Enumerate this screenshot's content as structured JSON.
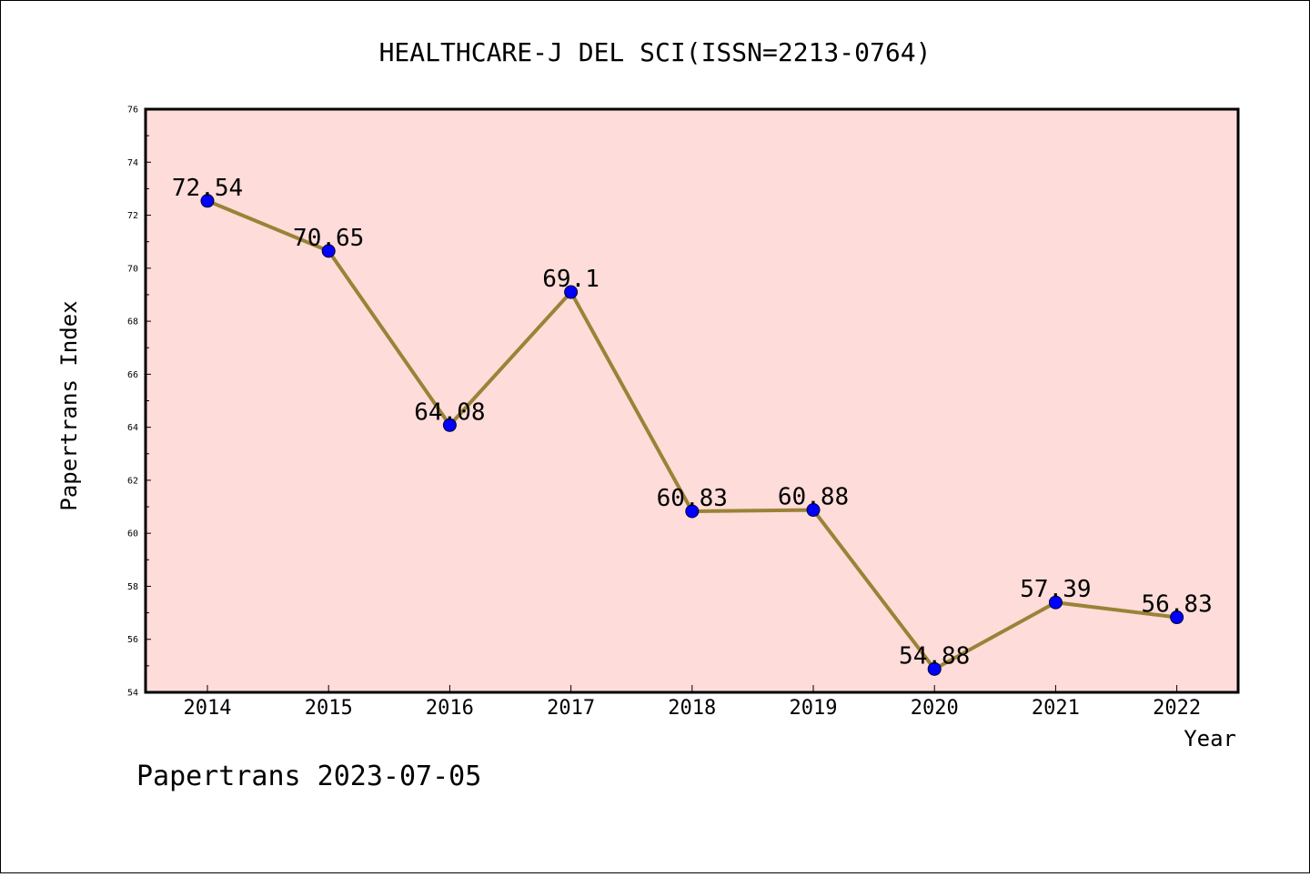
{
  "chart_data": {
    "type": "line",
    "title": "HEALTHCARE-J DEL SCI(ISSN=2213-0764)",
    "xlabel": "Year",
    "ylabel": "Papertrans Index",
    "categories": [
      "2014",
      "2015",
      "2016",
      "2017",
      "2018",
      "2019",
      "2020",
      "2021",
      "2022"
    ],
    "values": [
      72.54,
      70.65,
      64.08,
      69.1,
      60.83,
      60.88,
      54.88,
      57.39,
      56.83
    ],
    "value_labels": [
      "72.54",
      "70.65",
      "64.08",
      "69.1",
      "60.83",
      "60.88",
      "54.88",
      "57.39",
      "56.83"
    ],
    "ylim": [
      54,
      76
    ],
    "yticks": [
      "54",
      "56",
      "58",
      "60",
      "62",
      "64",
      "66",
      "68",
      "70",
      "72",
      "74",
      "76"
    ],
    "grid": false,
    "legend": "none",
    "footer": "Papertrans 2023-07-05",
    "colors": {
      "plot_background": "#fddcd9",
      "line": "#9a8237",
      "marker": "#0000ff",
      "frame": "#000000"
    }
  }
}
